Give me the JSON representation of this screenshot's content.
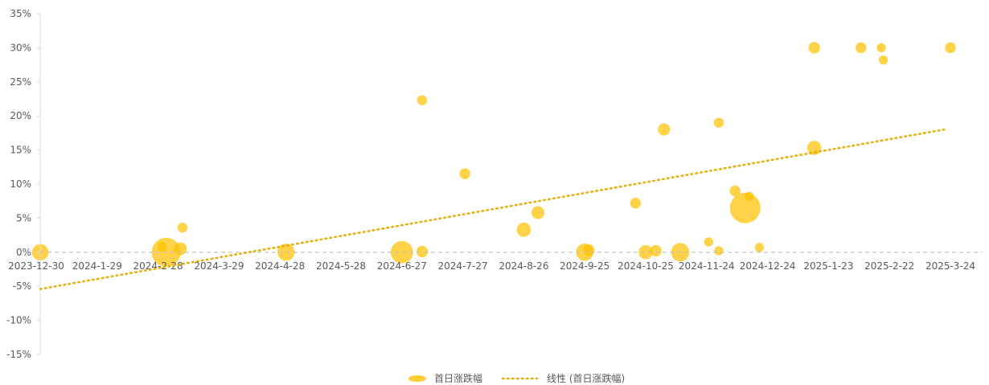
{
  "chart_data": {
    "type": "bubble",
    "title": "",
    "xlabel": "",
    "ylabel": "",
    "x_ticks": [
      "2023-12-30",
      "2024-1-29",
      "2024-2-28",
      "2024-3-29",
      "2024-4-28",
      "2024-5-28",
      "2024-6-27",
      "2024-7-27",
      "2024-8-26",
      "2024-9-25",
      "2024-10-25",
      "2024-11-24",
      "2024-12-24",
      "2025-1-23",
      "2025-2-22",
      "2025-3-24"
    ],
    "xlim": [
      "2023-12-30",
      "2025-4-6"
    ],
    "y_ticks": [
      "35%",
      "30%",
      "25%",
      "20%",
      "15%",
      "10%",
      "5%",
      "0%",
      "-5%",
      "-10%",
      "-15%"
    ],
    "ylim": [
      -15,
      35
    ],
    "y_unit": "%",
    "grid": false,
    "legend_position": "bottom",
    "colors": {
      "bubble": "#FFC000",
      "trend": "#E6AC00",
      "zero_line": "#BFBFBF",
      "axis": "#D9D9D9",
      "text": "#595959"
    },
    "series": [
      {
        "name": "首日涨跌幅",
        "points": [
          {
            "date": "2024-1-1",
            "y": 0,
            "size": 8
          },
          {
            "date": "2024-3-3",
            "y": 0,
            "size": 25
          },
          {
            "date": "2024-3-1",
            "y": 0.8,
            "size": 3
          },
          {
            "date": "2024-3-10",
            "y": 0.5,
            "size": 5
          },
          {
            "date": "2024-3-11",
            "y": 3.6,
            "size": 3
          },
          {
            "date": "2024-5-1",
            "y": 0,
            "size": 9
          },
          {
            "date": "2024-6-27",
            "y": 0,
            "size": 15
          },
          {
            "date": "2024-7-7",
            "y": 0.1,
            "size": 4
          },
          {
            "date": "2024-7-7",
            "y": 22.3,
            "size": 3
          },
          {
            "date": "2024-7-28",
            "y": 11.5,
            "size": 3.5
          },
          {
            "date": "2024-8-26",
            "y": 3.3,
            "size": 6
          },
          {
            "date": "2024-9-2",
            "y": 5.8,
            "size": 5
          },
          {
            "date": "2024-9-25",
            "y": 0,
            "size": 9
          },
          {
            "date": "2024-9-27",
            "y": 0.3,
            "size": 4
          },
          {
            "date": "2024-10-20",
            "y": 7.2,
            "size": 3.5
          },
          {
            "date": "2024-10-25",
            "y": 0,
            "size": 6
          },
          {
            "date": "2024-10-30",
            "y": 0.2,
            "size": 4
          },
          {
            "date": "2024-11-3",
            "y": 18,
            "size": 4.5
          },
          {
            "date": "2024-11-11",
            "y": 0,
            "size": 10
          },
          {
            "date": "2024-11-25",
            "y": 1.5,
            "size": 2.5
          },
          {
            "date": "2024-11-30",
            "y": 19,
            "size": 3
          },
          {
            "date": "2024-11-30",
            "y": 0.2,
            "size": 2.5
          },
          {
            "date": "2024-12-8",
            "y": 9,
            "size": 3.5
          },
          {
            "date": "2024-12-13",
            "y": 6.5,
            "size": 28
          },
          {
            "date": "2024-12-15",
            "y": 8.2,
            "size": 2.5
          },
          {
            "date": "2024-12-20",
            "y": 0.7,
            "size": 2.5
          },
          {
            "date": "2025-1-16",
            "y": 30,
            "size": 4
          },
          {
            "date": "2025-1-16",
            "y": 15.3,
            "size": 6
          },
          {
            "date": "2025-2-8",
            "y": 30,
            "size": 3.5
          },
          {
            "date": "2025-2-18",
            "y": 30,
            "size": 2.5
          },
          {
            "date": "2025-2-19",
            "y": 28.2,
            "size": 2.5
          },
          {
            "date": "2025-3-24",
            "y": 30,
            "size": 3.5
          }
        ]
      },
      {
        "name": "线性 (首日涨跌幅)",
        "trendline": {
          "start": {
            "date": "2024-1-1",
            "y": -5.4
          },
          "end": {
            "date": "2025-3-21",
            "y": 18
          }
        }
      }
    ]
  }
}
